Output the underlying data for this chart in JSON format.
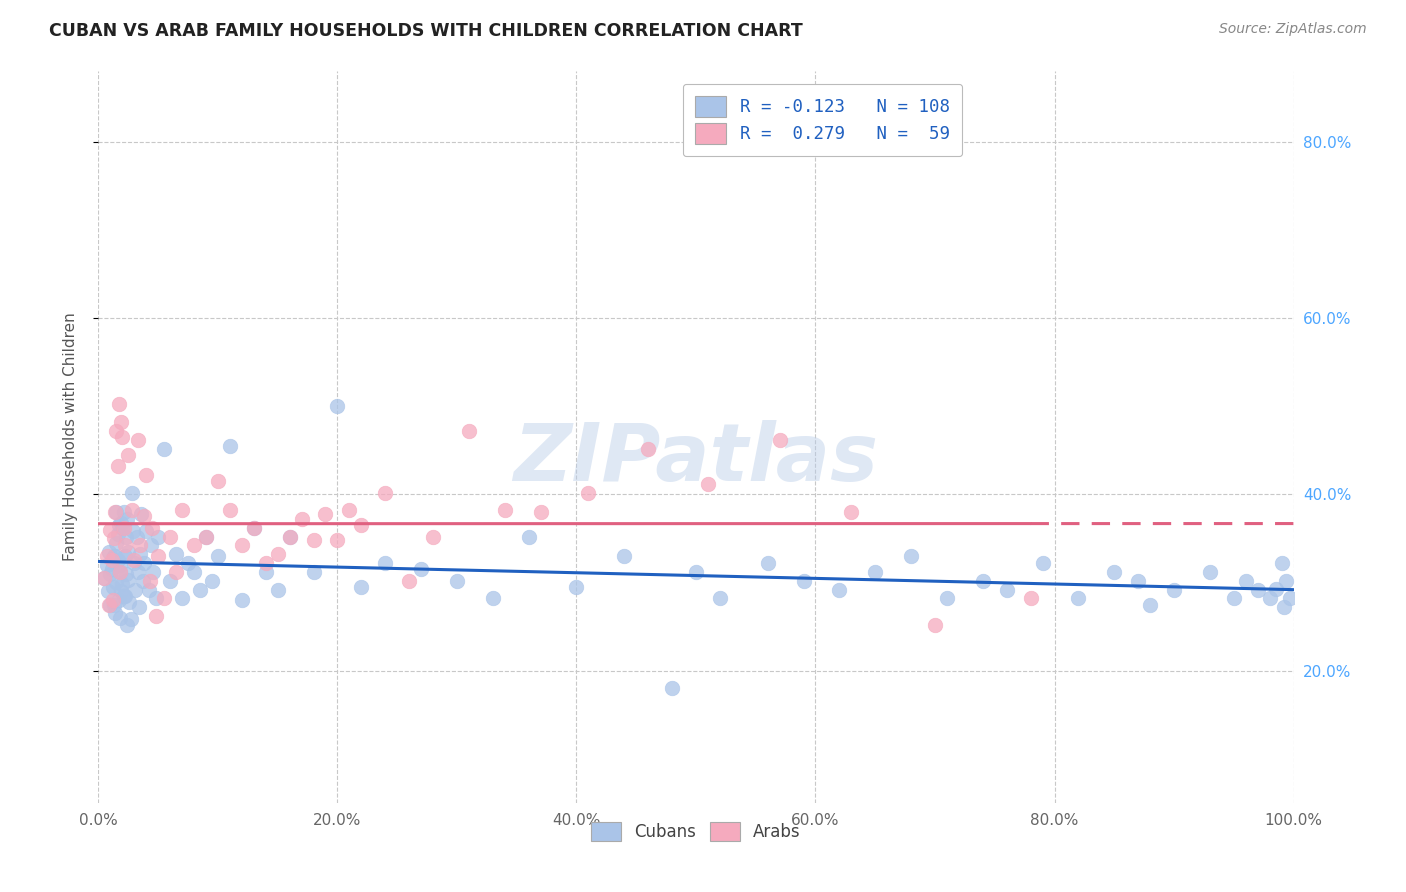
{
  "title": "CUBAN VS ARAB FAMILY HOUSEHOLDS WITH CHILDREN CORRELATION CHART",
  "source": "Source: ZipAtlas.com",
  "ylabel": "Family Households with Children",
  "xlim": [
    0.0,
    1.0
  ],
  "ylim": [
    0.05,
    0.88
  ],
  "yticks": [
    0.2,
    0.4,
    0.6,
    0.8
  ],
  "ytick_labels": [
    "20.0%",
    "40.0%",
    "60.0%",
    "80.0%"
  ],
  "xticks": [
    0.0,
    0.2,
    0.4,
    0.6,
    0.8,
    1.0
  ],
  "xtick_labels": [
    "0.0%",
    "20.0%",
    "40.0%",
    "60.0%",
    "80.0%",
    "100.0%"
  ],
  "cuban_color": "#aac4e8",
  "arab_color": "#f5aabe",
  "cuban_line_color": "#2060c0",
  "arab_line_color": "#e06080",
  "cuban_R": -0.123,
  "cuban_N": 108,
  "arab_R": 0.279,
  "arab_N": 59,
  "watermark": "ZIPatlas",
  "background": "#ffffff",
  "grid_color": "#c8c8c8",
  "title_color": "#222222",
  "right_tick_color": "#4da6ff",
  "cuban_x": [
    0.005,
    0.007,
    0.008,
    0.009,
    0.01,
    0.01,
    0.011,
    0.012,
    0.013,
    0.013,
    0.014,
    0.014,
    0.015,
    0.015,
    0.015,
    0.016,
    0.016,
    0.017,
    0.017,
    0.018,
    0.018,
    0.018,
    0.019,
    0.019,
    0.02,
    0.02,
    0.021,
    0.021,
    0.022,
    0.022,
    0.023,
    0.023,
    0.024,
    0.024,
    0.025,
    0.025,
    0.026,
    0.027,
    0.028,
    0.029,
    0.03,
    0.031,
    0.032,
    0.033,
    0.034,
    0.035,
    0.036,
    0.037,
    0.038,
    0.04,
    0.042,
    0.044,
    0.046,
    0.048,
    0.05,
    0.055,
    0.06,
    0.065,
    0.07,
    0.075,
    0.08,
    0.085,
    0.09,
    0.095,
    0.1,
    0.11,
    0.12,
    0.13,
    0.14,
    0.15,
    0.16,
    0.18,
    0.2,
    0.22,
    0.24,
    0.27,
    0.3,
    0.33,
    0.36,
    0.4,
    0.44,
    0.48,
    0.5,
    0.52,
    0.56,
    0.59,
    0.62,
    0.65,
    0.68,
    0.71,
    0.74,
    0.76,
    0.79,
    0.82,
    0.85,
    0.87,
    0.88,
    0.9,
    0.93,
    0.95,
    0.96,
    0.97,
    0.98,
    0.985,
    0.99,
    0.992,
    0.994,
    0.997
  ],
  "cuban_y": [
    0.305,
    0.32,
    0.29,
    0.335,
    0.275,
    0.31,
    0.315,
    0.295,
    0.275,
    0.33,
    0.33,
    0.265,
    0.345,
    0.38,
    0.3,
    0.325,
    0.355,
    0.28,
    0.365,
    0.312,
    0.26,
    0.32,
    0.368,
    0.29,
    0.362,
    0.298,
    0.285,
    0.38,
    0.33,
    0.285,
    0.352,
    0.31,
    0.252,
    0.372,
    0.303,
    0.335,
    0.278,
    0.258,
    0.402,
    0.358,
    0.322,
    0.292,
    0.352,
    0.312,
    0.272,
    0.332,
    0.378,
    0.302,
    0.322,
    0.358,
    0.292,
    0.342,
    0.312,
    0.282,
    0.352,
    0.452,
    0.302,
    0.332,
    0.282,
    0.322,
    0.312,
    0.292,
    0.352,
    0.302,
    0.33,
    0.455,
    0.28,
    0.362,
    0.312,
    0.292,
    0.352,
    0.312,
    0.5,
    0.295,
    0.322,
    0.315,
    0.302,
    0.282,
    0.352,
    0.295,
    0.33,
    0.18,
    0.312,
    0.282,
    0.322,
    0.302,
    0.292,
    0.312,
    0.33,
    0.282,
    0.302,
    0.292,
    0.322,
    0.282,
    0.312,
    0.302,
    0.275,
    0.292,
    0.312,
    0.282,
    0.302,
    0.292,
    0.282,
    0.293,
    0.322,
    0.272,
    0.302,
    0.282
  ],
  "arab_x": [
    0.005,
    0.007,
    0.009,
    0.01,
    0.011,
    0.012,
    0.013,
    0.014,
    0.015,
    0.016,
    0.017,
    0.018,
    0.019,
    0.02,
    0.021,
    0.022,
    0.025,
    0.028,
    0.03,
    0.033,
    0.035,
    0.038,
    0.04,
    0.043,
    0.045,
    0.048,
    0.05,
    0.055,
    0.06,
    0.065,
    0.07,
    0.08,
    0.09,
    0.1,
    0.11,
    0.12,
    0.13,
    0.14,
    0.15,
    0.16,
    0.17,
    0.18,
    0.19,
    0.2,
    0.21,
    0.22,
    0.24,
    0.26,
    0.28,
    0.31,
    0.34,
    0.37,
    0.41,
    0.46,
    0.51,
    0.57,
    0.63,
    0.7,
    0.78
  ],
  "arab_y": [
    0.305,
    0.33,
    0.275,
    0.36,
    0.325,
    0.28,
    0.35,
    0.38,
    0.472,
    0.432,
    0.502,
    0.312,
    0.482,
    0.465,
    0.362,
    0.342,
    0.445,
    0.382,
    0.325,
    0.462,
    0.342,
    0.375,
    0.422,
    0.302,
    0.362,
    0.262,
    0.33,
    0.282,
    0.352,
    0.312,
    0.382,
    0.342,
    0.352,
    0.415,
    0.382,
    0.342,
    0.362,
    0.322,
    0.332,
    0.352,
    0.372,
    0.348,
    0.378,
    0.348,
    0.382,
    0.365,
    0.402,
    0.302,
    0.352,
    0.472,
    0.382,
    0.38,
    0.402,
    0.452,
    0.412,
    0.462,
    0.38,
    0.252,
    0.282
  ]
}
